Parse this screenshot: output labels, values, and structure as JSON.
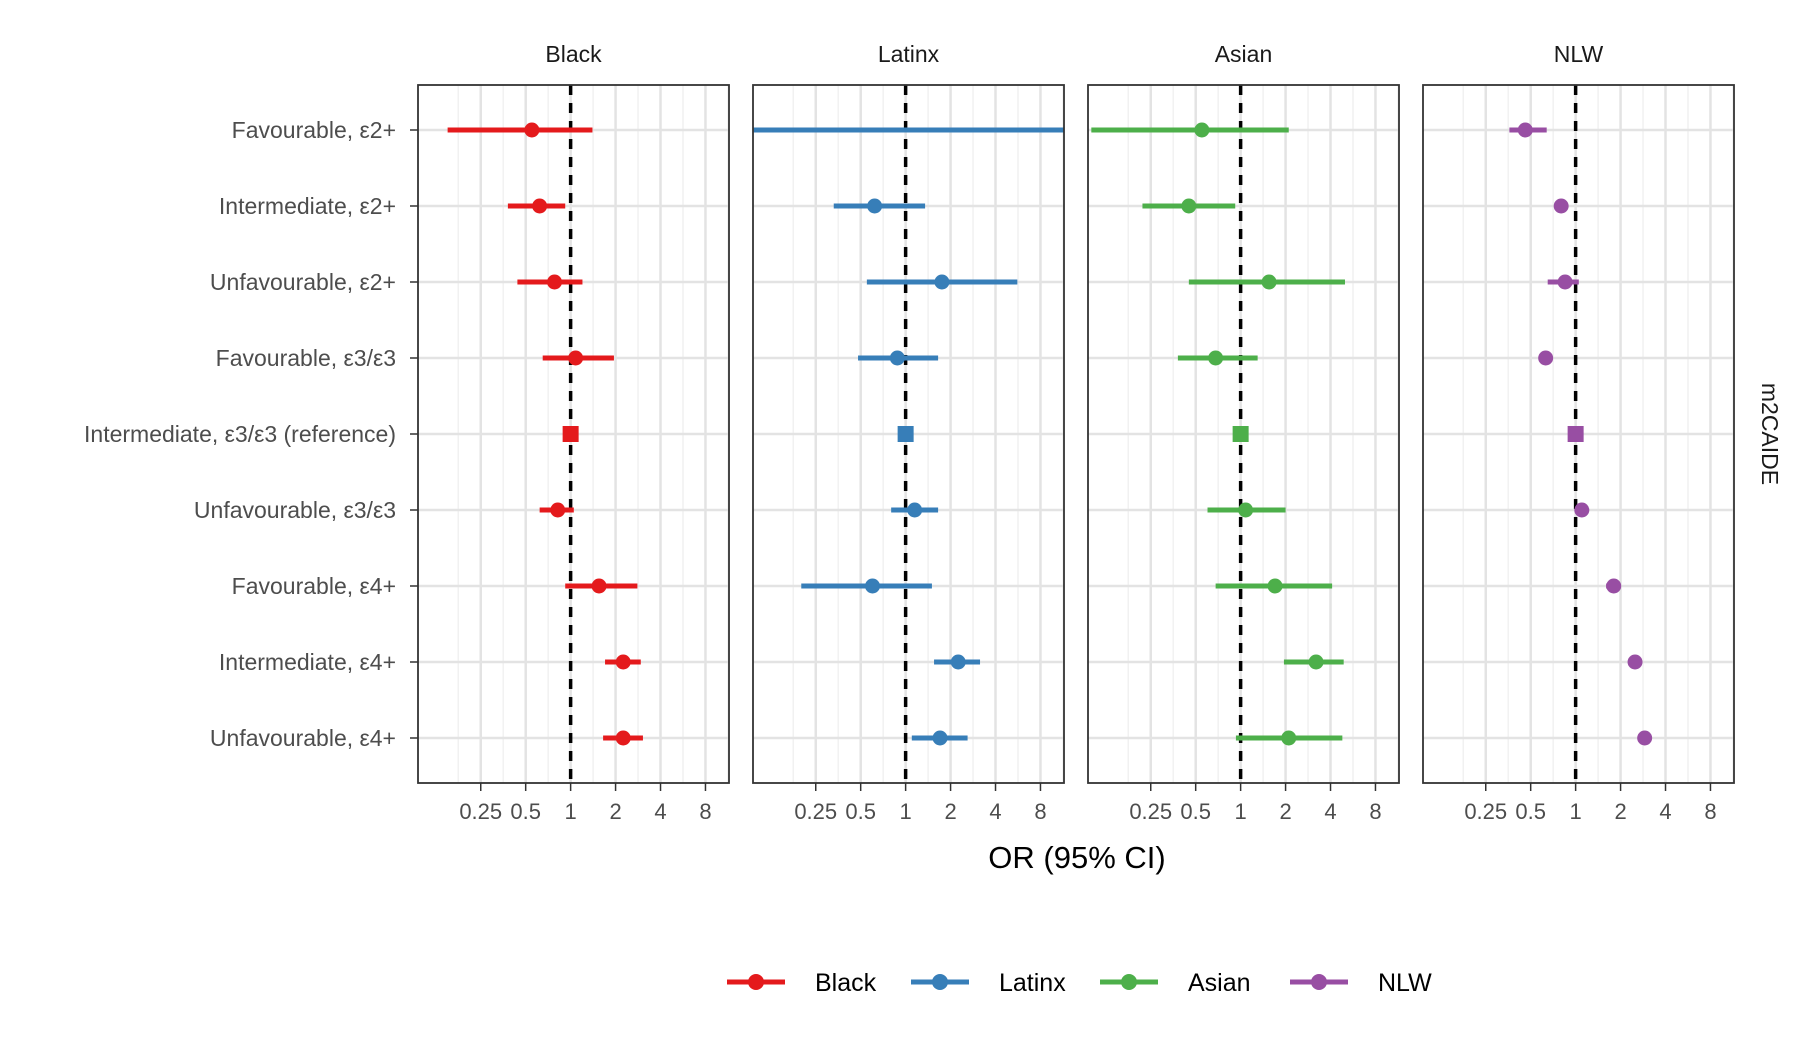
{
  "chart_data": {
    "type": "forest",
    "xlabel": "OR (95% CI)",
    "x_scale": "log2",
    "xlim": [
      0.095,
      11.5
    ],
    "x_ticks": [
      0.25,
      0.5,
      1,
      2,
      4,
      8
    ],
    "x_tick_labels": [
      "0.25",
      "0.5",
      "1",
      "2",
      "4",
      "8"
    ],
    "reference_line": 1,
    "reference_line_style": "dashed",
    "grid": true,
    "facet_row_label": "m2CAIDE",
    "legend_position": "bottom",
    "categories": [
      "Favourable, ε2+",
      "Intermediate, ε2+",
      "Unfavourable, ε2+",
      "Favourable, ε3/ε3",
      "Intermediate, ε3/ε3 (reference)",
      "Unfavourable, ε3/ε3",
      "Favourable, ε4+",
      "Intermediate, ε4+",
      "Unfavourable, ε4+"
    ],
    "reference_category_index": 4,
    "series": [
      {
        "name": "Black",
        "color": "#e41a1c",
        "or": [
          0.55,
          0.62,
          0.78,
          1.08,
          1.0,
          0.82,
          1.55,
          2.25,
          2.25
        ],
        "low": [
          0.15,
          0.38,
          0.44,
          0.65,
          1.0,
          0.62,
          0.92,
          1.7,
          1.65
        ],
        "high": [
          1.4,
          0.92,
          1.2,
          1.95,
          1.0,
          1.05,
          2.8,
          2.95,
          3.05
        ]
      },
      {
        "name": "Latinx",
        "color": "#377eb8",
        "or": [
          null,
          0.62,
          1.75,
          0.88,
          1.0,
          1.15,
          0.6,
          2.25,
          1.7
        ],
        "low": [
          0.095,
          0.33,
          0.55,
          0.48,
          1.0,
          0.8,
          0.2,
          1.55,
          1.1
        ],
        "high": [
          11.5,
          1.35,
          5.6,
          1.65,
          1.0,
          1.65,
          1.5,
          3.15,
          2.6
        ]
      },
      {
        "name": "Asian",
        "color": "#4daf4a",
        "or": [
          0.55,
          0.45,
          1.55,
          0.68,
          1.0,
          1.08,
          1.7,
          3.2,
          2.1
        ],
        "low": [
          0.1,
          0.22,
          0.45,
          0.38,
          1.0,
          0.6,
          0.68,
          1.95,
          0.93
        ],
        "high": [
          2.1,
          0.92,
          5.0,
          1.3,
          1.0,
          2.0,
          4.1,
          4.9,
          4.8
        ]
      },
      {
        "name": "NLW",
        "color": "#984ea3",
        "or": [
          0.46,
          0.8,
          0.85,
          0.63,
          1.0,
          1.1,
          1.8,
          2.5,
          2.9
        ],
        "low": [
          0.36,
          0.74,
          0.65,
          0.58,
          1.0,
          1.02,
          1.6,
          2.35,
          2.7
        ],
        "high": [
          0.64,
          0.88,
          1.05,
          0.68,
          1.0,
          1.18,
          2.0,
          2.65,
          3.1
        ]
      }
    ]
  }
}
